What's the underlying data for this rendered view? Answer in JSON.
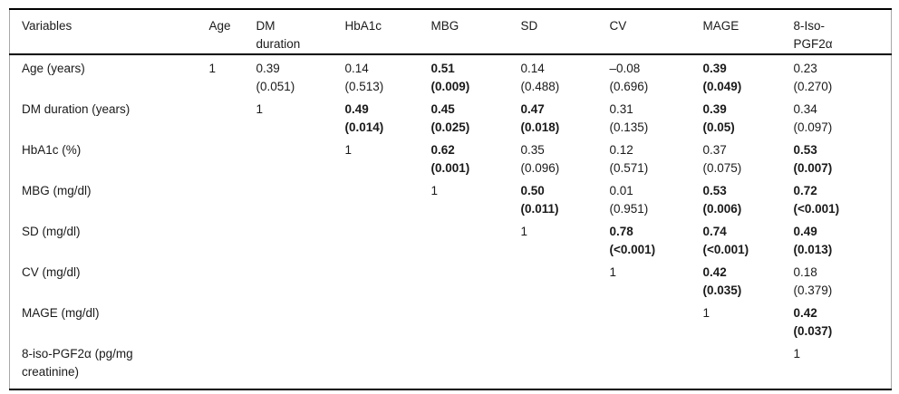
{
  "table": {
    "description": "Correlation matrix of glycemic variability parameters with r values and p values in parentheses; significant correlations shown in bold",
    "columns": [
      "Variables",
      "Age",
      "DM\nduration",
      "HbA1c",
      "MBG",
      "SD",
      "CV",
      "MAGE",
      "8-Iso-\nPGF2α"
    ],
    "rows": [
      {
        "label": "Age (years)",
        "cells": [
          {
            "r": "1",
            "p": "",
            "bold": false
          },
          {
            "r": "0.39",
            "p": "(0.051)",
            "bold": false
          },
          {
            "r": "0.14",
            "p": "(0.513)",
            "bold": false
          },
          {
            "r": "0.51",
            "p": "(0.009)",
            "bold": true
          },
          {
            "r": "0.14",
            "p": "(0.488)",
            "bold": false
          },
          {
            "r": "–0.08",
            "p": "(0.696)",
            "bold": false
          },
          {
            "r": "0.39",
            "p": "(0.049)",
            "bold": true
          },
          {
            "r": "0.23",
            "p": "(0.270)",
            "bold": false
          }
        ]
      },
      {
        "label": "DM duration (years)",
        "cells": [
          null,
          {
            "r": "1",
            "p": "",
            "bold": false
          },
          {
            "r": "0.49",
            "p": "(0.014)",
            "bold": true
          },
          {
            "r": "0.45",
            "p": "(0.025)",
            "bold": true
          },
          {
            "r": "0.47",
            "p": "(0.018)",
            "bold": true
          },
          {
            "r": "0.31",
            "p": "(0.135)",
            "bold": false
          },
          {
            "r": "0.39",
            "p": "(0.05)",
            "bold": true
          },
          {
            "r": "0.34",
            "p": "(0.097)",
            "bold": false
          }
        ]
      },
      {
        "label": "HbA1c (%)",
        "cells": [
          null,
          null,
          {
            "r": "1",
            "p": "",
            "bold": false
          },
          {
            "r": "0.62",
            "p": "(0.001)",
            "bold": true
          },
          {
            "r": "0.35",
            "p": "(0.096)",
            "bold": false
          },
          {
            "r": "0.12",
            "p": "(0.571)",
            "bold": false
          },
          {
            "r": "0.37",
            "p": "(0.075)",
            "bold": false
          },
          {
            "r": "0.53",
            "p": "(0.007)",
            "bold": true
          }
        ]
      },
      {
        "label": "MBG (mg/dl)",
        "cells": [
          null,
          null,
          null,
          {
            "r": "1",
            "p": "",
            "bold": false
          },
          {
            "r": "0.50",
            "p": "(0.011)",
            "bold": true
          },
          {
            "r": "0.01",
            "p": "(0.951)",
            "bold": false
          },
          {
            "r": "0.53",
            "p": "(0.006)",
            "bold": true
          },
          {
            "r": "0.72",
            "p": "(<0.001)",
            "bold": true
          }
        ]
      },
      {
        "label": "SD (mg/dl)",
        "cells": [
          null,
          null,
          null,
          null,
          {
            "r": "1",
            "p": "",
            "bold": false
          },
          {
            "r": "0.78",
            "p": "(<0.001)",
            "bold": true
          },
          {
            "r": "0.74",
            "p": "(<0.001)",
            "bold": true
          },
          {
            "r": "0.49",
            "p": "(0.013)",
            "bold": true
          }
        ]
      },
      {
        "label": "CV (mg/dl)",
        "cells": [
          null,
          null,
          null,
          null,
          null,
          {
            "r": "1",
            "p": "",
            "bold": false
          },
          {
            "r": "0.42",
            "p": "(0.035)",
            "bold": true
          },
          {
            "r": "0.18",
            "p": "(0.379)",
            "bold": false
          }
        ]
      },
      {
        "label": "MAGE (mg/dl)",
        "cells": [
          null,
          null,
          null,
          null,
          null,
          null,
          {
            "r": "1",
            "p": "",
            "bold": false
          },
          {
            "r": "0.42",
            "p": "(0.037)",
            "bold": true
          }
        ]
      },
      {
        "label": "8-iso-PGF2α (pg/mg\ncreatinine)",
        "cells": [
          null,
          null,
          null,
          null,
          null,
          null,
          null,
          {
            "r": "1",
            "p": "",
            "bold": false
          }
        ]
      }
    ]
  }
}
